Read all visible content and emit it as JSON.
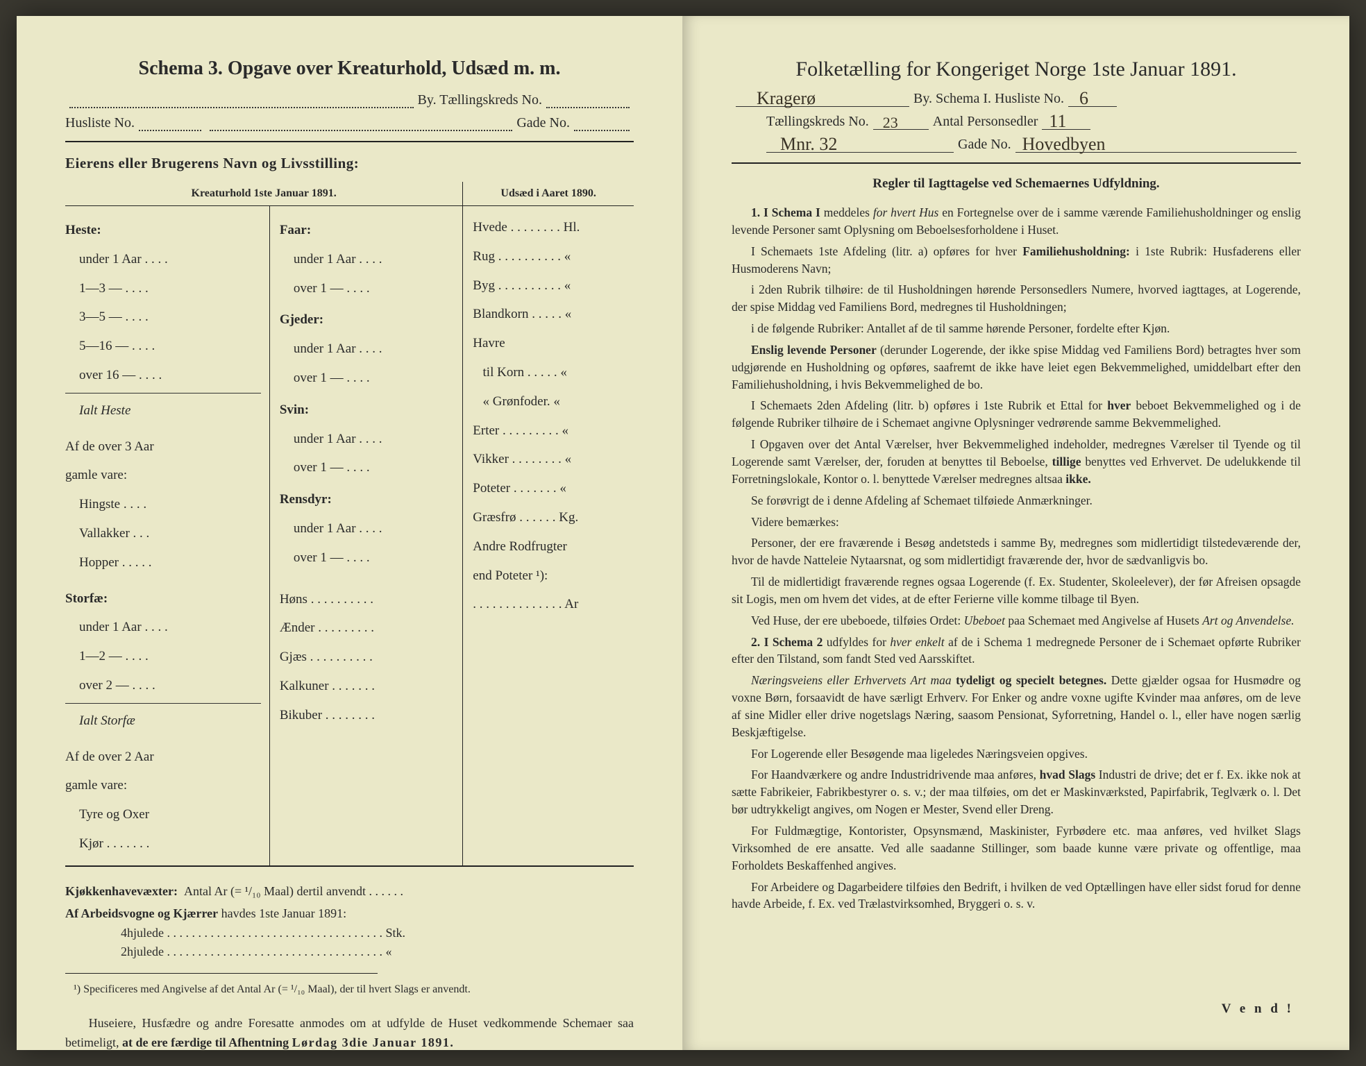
{
  "left": {
    "title": "Schema 3.   Opgave over Kreaturhold, Udsæd m. m.",
    "line1_suffix": "By.   Tællingskreds No.",
    "line2_prefix": "Husliste No.",
    "line2_suffix": "Gade No.",
    "owner_heading": "Eierens eller Brugerens Navn og Livsstilling:",
    "col_heads": {
      "a": "Kreaturhold 1ste Januar 1891.",
      "b": "Udsæd i Aaret 1890."
    },
    "c1": {
      "heste": "Heste:",
      "heste_rows": [
        "under 1 Aar . . . .",
        "1—3   —   . . . .",
        "3—5   —   . . . .",
        "5—16  —   . . . .",
        "over 16 —  . . . ."
      ],
      "ialt_heste": "Ialt Heste",
      "af3": "Af de over 3 Aar\ngamle vare:",
      "af3_rows": [
        "Hingste . . . .",
        "Vallakker . . .",
        "Hopper . . . . ."
      ],
      "storfae": "Storfæ:",
      "storfae_rows": [
        "under 1 Aar . . . .",
        "1—2   —   . . . .",
        "over 2  —   . . . ."
      ],
      "ialt_storfae": "Ialt Storfæ",
      "af2": "Af de over 2 Aar\ngamle vare:",
      "af2_rows": [
        "Tyre og Oxer",
        "Kjør . . . . . . ."
      ]
    },
    "c2": {
      "faar": "Faar:",
      "faar_rows": [
        "under 1 Aar . . . .",
        "over 1  —  . . . ."
      ],
      "gjeder": "Gjeder:",
      "gjeder_rows": [
        "under 1 Aar . . . .",
        "over 1  —  . . . ."
      ],
      "svin": "Svin:",
      "svin_rows": [
        "under 1 Aar . . . .",
        "over 1  —  . . . ."
      ],
      "rensdyr": "Rensdyr:",
      "rensdyr_rows": [
        "under 1 Aar . . . .",
        "over 1  —  . . . ."
      ],
      "hons": "Høns . . . . . . . . . .",
      "aender": "Ænder . . . . . . . . .",
      "gjaes": "Gjæs  . . . . . . . . . .",
      "kalkuner": "Kalkuner . . . . . . .",
      "bikuber": "Bikuber . . . . . . . ."
    },
    "c3": {
      "rows": [
        "Hvede . . . . . . . . Hl.",
        "Rug . . . . . . . . . .  «",
        "Byg . . . . . . . . . .  «",
        "Blandkorn . . . . .  «",
        "Havre",
        "  til Korn . . . . .  «",
        "  «  Grønfoder.  «",
        "Erter . . . . . . . . .  «",
        "Vikker . . . . . . . .  «",
        "Poteter . . . . . . .  «",
        "Græsfrø . . . . . . Kg.",
        "Andre Rodfrugter",
        "end Poteter ¹):",
        ". . . . . . . . . . . . . . Ar"
      ]
    },
    "below1_a": "Kjøkkenhavevæxter:",
    "below1_b": "Antal Ar (= ¹/₁₀ Maal) dertil anvendt . . . . . .",
    "below2": "Af Arbeidsvogne og Kjærrer havdes 1ste Januar 1891:",
    "below2_rows": [
      "4hjulede . . . . . . . . . . . . . . . . . . . . . . . . . . . . . . . . . . . Stk.",
      "2hjulede . . . . . . . . . . . . . . . . . . . . . . . . . . . . . . . . . . .   «"
    ],
    "footnote": "¹) Specificeres med Angivelse af det Antal Ar (= ¹/₁₀ Maal), der til hvert Slags er anvendt.",
    "closing": "Huseiere, Husfædre og andre Foresatte anmodes om at udfylde de Huset vedkommende Schemaer saa betimeligt, at de ere færdige til Afhentning Lørdag 3die Januar 1891."
  },
  "right": {
    "title": "Folketælling for Kongeriget Norge 1ste Januar 1891.",
    "line1_a": "By.   Schema I.   Husliste No.",
    "line2_a": "Tællingskreds No.",
    "line2_b": "Antal Personsedler",
    "line3_b": "Gade No.",
    "handwritten": {
      "by": "Kragerø",
      "husliste": "6",
      "kreds": "23",
      "antal": "11",
      "mnr": "Mnr. 32",
      "gade": "Hovedbyen"
    },
    "rules_head": "Regler til Iagttagelse ved Schemaernes Udfyldning.",
    "rules": [
      "<b>1. I Schema I</b> meddeles <i>for hvert Hus</i> en Fortegnelse over de i samme værende Familiehusholdninger og enslig levende Personer samt Oplysning om Beboelsesforholdene i Huset.",
      "I Schemaets 1ste Afdeling (litr. a) opføres for hver <b>Familiehusholdning:</b> i 1ste Rubrik: Husfaderens eller Husmoderens Navn;",
      "i 2den Rubrik tilhøire: de til Husholdningen hørende Personsedlers Numere, hvorved iagttages, at Logerende, der spise Middag ved Familiens Bord, medregnes til Husholdningen;",
      "i de følgende Rubriker: Antallet af de til samme hørende Personer, fordelte efter Kjøn.",
      "<b>Enslig levende Personer</b> (derunder Logerende, der ikke spise Middag ved Familiens Bord) betragtes hver som udgjørende en Husholdning og opføres, saafremt de ikke have leiet egen Bekvemmelighed, umiddelbart efter den Familiehusholdning, i hvis Bekvemmelighed de bo.",
      "I Schemaets 2den Afdeling (litr. b) opføres i 1ste Rubrik et Ettal for <b>hver</b> beboet Bekvemmelighed og i de følgende Rubriker tilhøire de i Schemaet angivne Oplysninger vedrørende samme Bekvemmelighed.",
      "I Opgaven over det Antal Værelser, hver Bekvemmelighed indeholder, medregnes Værelser til Tyende og til Logerende samt Værelser, der, foruden at benyttes til Beboelse, <b>tillige</b> benyttes ved Erhvervet. De udelukkende til Forretningslokale, Kontor o. l. benyttede Værelser medregnes altsaa <b>ikke.</b>",
      "Se forøvrigt de i denne Afdeling af Schemaet tilføiede Anmærkninger.",
      "Videre bemærkes:",
      "Personer, der ere fraværende i Besøg andetsteds i samme By, medregnes som midlertidigt tilstedeværende der, hvor de havde Natteleie Nytaarsnat, og som midlertidigt fraværende der, hvor de sædvanligvis bo.",
      "Til de midlertidigt fraværende regnes ogsaa Logerende (f. Ex. Studenter, Skoleelever), der før Afreisen opsagde sit Logis, men om hvem det vides, at de efter Ferierne ville komme tilbage til Byen.",
      "Ved Huse, der ere ubeboede, tilføies Ordet: <i>Ubeboet</i> paa Schemaet med Angivelse af Husets <i>Art og Anvendelse.</i>",
      "<b>2. I Schema 2</b> udfyldes for <i>hver enkelt</i> af de i Schema 1 medregnede Personer de i Schemaet opførte Rubriker efter den Tilstand, som fandt Sted ved Aarsskiftet.",
      "<i>Næringsveiens eller Erhvervets Art maa</i> <b>tydeligt og specielt betegnes.</b> Dette gjælder ogsaa for Husmødre og voxne Børn, forsaavidt de have særligt Erhverv. For Enker og andre voxne ugifte Kvinder maa anføres, om de leve af sine Midler eller drive nogetslags Næring, saasom Pensionat, Syforretning, Handel o. l., eller have nogen særlig Beskjæftigelse.",
      "For Logerende eller Besøgende maa ligeledes Næringsveien opgives.",
      "For Haandværkere og andre Industridrivende maa anføres, <b>hvad Slags</b> Industri de drive; det er f. Ex. ikke nok at sætte Fabrikеier, Fabrikbestyrer o. s. v.; der maa tilføies, om det er Maskinværksted, Papirfabrik, Teglværk o. l. Det bør udtrykkeligt angives, om Nogen er Mester, Svend eller Dreng.",
      "For Fuldmægtige, Kontorister, Opsynsmænd, Maskinister, Fyrbødere etc. maa anføres, ved hvilket Slags Virksomhed de ere ansatte. Ved alle saadanne Stillinger, som baade kunne være private og offentlige, maa Forholdets Beskaffenhed angives.",
      "For Arbeidere og Dagarbeidere tilføies den Bedrift, i hvilken de ved Optællingen have eller sidst forud for denne havde Arbeide, f. Ex. ved Trælastvirksomhed, Bryggeri o. s. v."
    ],
    "vend": "V e n d !"
  }
}
